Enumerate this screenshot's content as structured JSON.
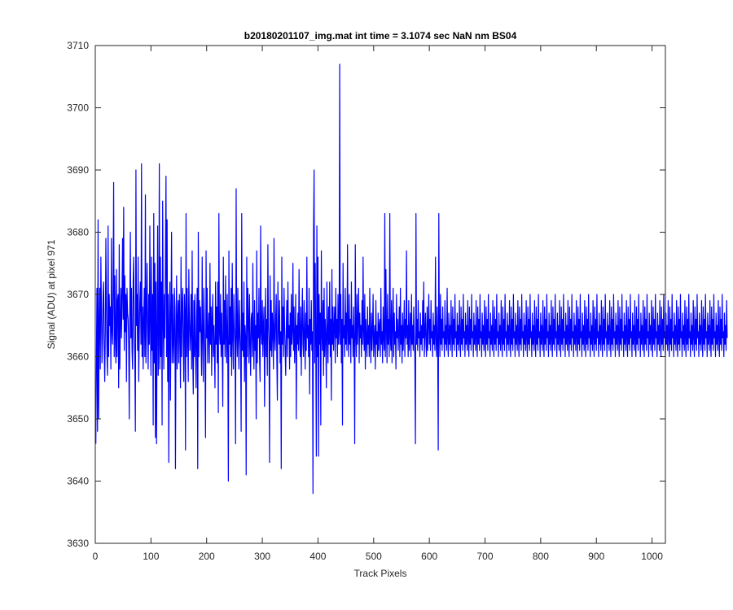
{
  "chart_data": {
    "type": "line",
    "title": "b20180201107_img.mat int time = 3.1074 sec  NaN nm BS04",
    "xlabel": "Track Pixels",
    "ylabel": "Signal (ADU) at pixel 971",
    "xlim": [
      0,
      1024
    ],
    "ylim": [
      3630,
      3710
    ],
    "xticks": [
      0,
      100,
      200,
      300,
      400,
      500,
      600,
      700,
      800,
      900,
      1000
    ],
    "yticks": [
      3630,
      3640,
      3650,
      3660,
      3670,
      3680,
      3690,
      3700,
      3710
    ],
    "xtick_labels": [
      "0",
      "100",
      "200",
      "300",
      "400",
      "500",
      "600",
      "700",
      "800",
      "900",
      "1000"
    ],
    "ytick_labels": [
      "3630",
      "3640",
      "3650",
      "3660",
      "3670",
      "3680",
      "3690",
      "3700",
      "3710"
    ],
    "grid": false,
    "legend": false,
    "series": [
      {
        "color": "#0000ff",
        "x_start": 1,
        "x_step": 1,
        "y": [
          3646,
          3660,
          3671,
          3648,
          3682,
          3650,
          3665,
          3671,
          3658,
          3676,
          3668,
          3659,
          3663,
          3670,
          3672,
          3661,
          3656,
          3664,
          3679,
          3668,
          3660,
          3657,
          3681,
          3660,
          3670,
          3665,
          3668,
          3658,
          3679,
          3664,
          3662,
          3671,
          3688,
          3660,
          3673,
          3663,
          3659,
          3674,
          3660,
          3669,
          3670,
          3655,
          3678,
          3658,
          3665,
          3671,
          3663,
          3670,
          3679,
          3666,
          3684,
          3661,
          3673,
          3664,
          3670,
          3656,
          3671,
          3667,
          3666,
          3662,
          3650,
          3667,
          3680,
          3663,
          3671,
          3661,
          3658,
          3672,
          3676,
          3664,
          3660,
          3648,
          3690,
          3665,
          3670,
          3661,
          3676,
          3656,
          3664,
          3669,
          3672,
          3662,
          3691,
          3660,
          3668,
          3658,
          3666,
          3671,
          3660,
          3686,
          3659,
          3667,
          3675,
          3664,
          3658,
          3670,
          3662,
          3681,
          3665,
          3657,
          3676,
          3661,
          3670,
          3649,
          3683,
          3659,
          3675,
          3647,
          3672,
          3646,
          3664,
          3681,
          3657,
          3662,
          3691,
          3658,
          3676,
          3660,
          3672,
          3649,
          3685,
          3666,
          3658,
          3670,
          3663,
          3676,
          3689,
          3660,
          3682,
          3656,
          3670,
          3643,
          3665,
          3672,
          3653,
          3667,
          3680,
          3659,
          3670,
          3662,
          3659,
          3671,
          3668,
          3642,
          3663,
          3673,
          3658,
          3666,
          3669,
          3659,
          3670,
          3664,
          3655,
          3676,
          3660,
          3668,
          3671,
          3662,
          3656,
          3670,
          3667,
          3645,
          3683,
          3660,
          3671,
          3663,
          3656,
          3674,
          3666,
          3661,
          3664,
          3670,
          3658,
          3677,
          3660,
          3654,
          3669,
          3660,
          3670,
          3661,
          3655,
          3666,
          3671,
          3642,
          3680,
          3660,
          3669,
          3664,
          3668,
          3662,
          3657,
          3676,
          3663,
          3656,
          3671,
          3665,
          3660,
          3647,
          3677,
          3663,
          3671,
          3659,
          3664,
          3667,
          3659,
          3675,
          3662,
          3668,
          3657,
          3666,
          3670,
          3660,
          3665,
          3661,
          3655,
          3672,
          3662,
          3668,
          3659,
          3672,
          3651,
          3683,
          3664,
          3662,
          3670,
          3660,
          3667,
          3661,
          3652,
          3676,
          3662,
          3669,
          3660,
          3673,
          3663,
          3659,
          3670,
          3661,
          3640,
          3677,
          3662,
          3668,
          3660,
          3671,
          3657,
          3675,
          3663,
          3658,
          3670,
          3665,
          3662,
          3646,
          3687,
          3664,
          3660,
          3671,
          3663,
          3658,
          3669,
          3664,
          3661,
          3648,
          3683,
          3661,
          3667,
          3660,
          3672,
          3656,
          3665,
          3663,
          3641,
          3676,
          3660,
          3671,
          3666,
          3659,
          3670,
          3662,
          3657,
          3666,
          3667,
          3660,
          3675,
          3663,
          3658,
          3669,
          3661,
          3665,
          3650,
          3677,
          3659,
          3667,
          3663,
          3671,
          3660,
          3656,
          3681,
          3664,
          3662,
          3669,
          3660,
          3665,
          3668,
          3652,
          3663,
          3671,
          3660,
          3666,
          3657,
          3678,
          3665,
          3662,
          3643,
          3673,
          3661,
          3669,
          3660,
          3667,
          3664,
          3658,
          3679,
          3663,
          3661,
          3666,
          3670,
          3660,
          3653,
          3672,
          3665,
          3662,
          3669,
          3659,
          3664,
          3642,
          3676,
          3662,
          3668,
          3660,
          3671,
          3665,
          3661,
          3657,
          3664,
          3669,
          3660,
          3672,
          3663,
          3665,
          3658,
          3667,
          3660,
          3670,
          3662,
          3664,
          3675,
          3661,
          3668,
          3659,
          3663,
          3670,
          3650,
          3665,
          3662,
          3667,
          3661,
          3674,
          3663,
          3660,
          3668,
          3657,
          3665,
          3671,
          3662,
          3660,
          3669,
          3664,
          3658,
          3667,
          3661,
          3676,
          3663,
          3665,
          3660,
          3671,
          3654,
          3666,
          3662,
          3669,
          3661,
          3664,
          3638,
          3680,
          3690,
          3659,
          3675,
          3662,
          3644,
          3681,
          3660,
          3676,
          3644,
          3670,
          3662,
          3667,
          3649,
          3677,
          3664,
          3661,
          3669,
          3657,
          3671,
          3660,
          3666,
          3663,
          3655,
          3672,
          3664,
          3659,
          3668,
          3662,
          3672,
          3660,
          3666,
          3653,
          3674,
          3662,
          3668,
          3661,
          3665,
          3668,
          3659,
          3671,
          3663,
          3666,
          3660,
          3670,
          3662,
          3664,
          3707,
          3662,
          3670,
          3659,
          3666,
          3649,
          3675,
          3663,
          3665,
          3660,
          3671,
          3662,
          3667,
          3661,
          3678,
          3664,
          3660,
          3670,
          3662,
          3666,
          3659,
          3672,
          3663,
          3665,
          3660,
          3668,
          3662,
          3646,
          3678,
          3664,
          3660,
          3670,
          3662,
          3666,
          3671,
          3659,
          3667,
          3663,
          3665,
          3660,
          3669,
          3662,
          3676,
          3664,
          3661,
          3670,
          3658,
          3666,
          3663,
          3660,
          3668,
          3662,
          3665,
          3660,
          3671,
          3663,
          3659,
          3667,
          3661,
          3664,
          3670,
          3660,
          3663,
          3665,
          3658,
          3669,
          3662,
          3664,
          3660,
          3667,
          3661,
          3665,
          3666,
          3660,
          3671,
          3662,
          3664,
          3659,
          3668,
          3663,
          3661,
          3683,
          3660,
          3674,
          3664,
          3659,
          3670,
          3662,
          3666,
          3660,
          3683,
          3663,
          3661,
          3669,
          3659,
          3665,
          3671,
          3660,
          3667,
          3662,
          3664,
          3658,
          3670,
          3663,
          3666,
          3661,
          3664,
          3668,
          3660,
          3671,
          3662,
          3665,
          3659,
          3667,
          3661,
          3664,
          3669,
          3660,
          3666,
          3663,
          3677,
          3662,
          3665,
          3660,
          3669,
          3661,
          3664,
          3667,
          3660,
          3670,
          3662,
          3665,
          3661,
          3668,
          3663,
          3660,
          3646,
          3683,
          3662,
          3666,
          3661,
          3669,
          3663,
          3664,
          3660,
          3667,
          3662,
          3665,
          3661,
          3669,
          3663,
          3672,
          3660,
          3664,
          3667,
          3662,
          3660,
          3668,
          3661,
          3665,
          3670,
          3662,
          3666,
          3661,
          3669,
          3663,
          3664,
          3660,
          3667,
          3662,
          3665,
          3661,
          3676,
          3663,
          3660,
          3668,
          3662,
          3645,
          3683,
          3664,
          3660,
          3670,
          3662,
          3666,
          3661,
          3668,
          3663,
          3664,
          3660,
          3669,
          3662,
          3665,
          3661,
          3671,
          3663,
          3660,
          3667,
          3662,
          3665,
          3661,
          3669,
          3664,
          3660,
          3668,
          3662,
          3666,
          3661,
          3670,
          3663,
          3664,
          3660,
          3667,
          3662,
          3665,
          3661,
          3669,
          3663,
          3660,
          3668,
          3662,
          3666,
          3661,
          3670,
          3663,
          3664,
          3660,
          3667,
          3662,
          3665,
          3661,
          3669,
          3663,
          3660,
          3668,
          3662,
          3666,
          3661,
          3670,
          3663,
          3664,
          3660,
          3667,
          3662,
          3665,
          3661,
          3669,
          3663,
          3660,
          3668,
          3662,
          3666,
          3661,
          3670,
          3663,
          3664,
          3660,
          3667,
          3662,
          3665,
          3661,
          3669,
          3663,
          3660,
          3668,
          3662,
          3666,
          3661,
          3670,
          3663,
          3664,
          3660,
          3667,
          3662,
          3665,
          3661,
          3669,
          3663,
          3660,
          3668,
          3662,
          3666,
          3661,
          3670,
          3663,
          3664,
          3660,
          3667,
          3662,
          3665,
          3661,
          3669,
          3663,
          3660,
          3668,
          3662,
          3666,
          3661,
          3670,
          3663,
          3664,
          3660,
          3667,
          3662,
          3665,
          3661,
          3669,
          3663,
          3660,
          3668,
          3662,
          3666,
          3661,
          3670,
          3663,
          3664,
          3660,
          3667,
          3662,
          3665,
          3661,
          3669,
          3663,
          3660,
          3668,
          3662,
          3666,
          3661,
          3670,
          3663,
          3664,
          3660,
          3667,
          3662,
          3665,
          3661,
          3669,
          3663,
          3660,
          3668,
          3662,
          3666,
          3661,
          3670,
          3663,
          3664,
          3660,
          3667,
          3662,
          3665,
          3661,
          3669,
          3663,
          3660,
          3668,
          3662,
          3666,
          3661,
          3670,
          3663,
          3664,
          3660,
          3667,
          3662,
          3665,
          3661,
          3669,
          3663,
          3660,
          3668,
          3662,
          3666,
          3661,
          3670,
          3663,
          3664,
          3660,
          3667,
          3662,
          3665,
          3661,
          3669,
          3663,
          3660,
          3668,
          3662,
          3666,
          3661,
          3670,
          3663,
          3664,
          3660,
          3667,
          3662,
          3665,
          3661,
          3669,
          3663,
          3660,
          3668,
          3662,
          3666,
          3661,
          3670,
          3663,
          3664,
          3660,
          3667,
          3662,
          3665,
          3661,
          3669,
          3663,
          3660,
          3668,
          3662,
          3666,
          3661,
          3670,
          3663,
          3664,
          3660,
          3667,
          3662,
          3665,
          3661,
          3669,
          3663,
          3660,
          3668,
          3662,
          3666,
          3661,
          3670,
          3663,
          3664,
          3660,
          3667,
          3662,
          3665,
          3661,
          3669,
          3663,
          3660,
          3668,
          3662,
          3666,
          3661,
          3670,
          3663,
          3664,
          3660,
          3667,
          3662,
          3665,
          3661,
          3669,
          3663,
          3660,
          3668,
          3662,
          3666,
          3661,
          3670,
          3663,
          3664,
          3660,
          3667,
          3662,
          3665,
          3661,
          3669,
          3663,
          3660,
          3668,
          3662,
          3666,
          3661,
          3670,
          3663,
          3664,
          3660,
          3667,
          3662,
          3665,
          3661,
          3669,
          3663,
          3660,
          3668,
          3662,
          3666,
          3661,
          3670,
          3663,
          3664,
          3660,
          3667,
          3662,
          3665,
          3661,
          3669,
          3663,
          3660,
          3668,
          3662,
          3666,
          3661,
          3670,
          3663,
          3664,
          3660,
          3667,
          3662,
          3665,
          3661,
          3669,
          3663,
          3660,
          3668,
          3662,
          3666,
          3661,
          3670,
          3663,
          3664,
          3660,
          3667,
          3662,
          3665,
          3661,
          3669,
          3663,
          3660,
          3668,
          3662,
          3666,
          3661,
          3670,
          3663,
          3664,
          3660,
          3667,
          3662,
          3665,
          3661,
          3669,
          3663,
          3660,
          3668,
          3662,
          3666,
          3661,
          3670,
          3663,
          3664,
          3660,
          3667,
          3662,
          3665,
          3661,
          3669,
          3663,
          3660,
          3668,
          3662,
          3666,
          3661,
          3670,
          3663,
          3664,
          3660,
          3667,
          3662,
          3665,
          3661,
          3669,
          3663,
          3660,
          3668,
          3662,
          3666,
          3661,
          3670,
          3663,
          3664,
          3660,
          3667,
          3662,
          3665,
          3661,
          3669,
          3663,
          3660,
          3668,
          3662,
          3666,
          3661,
          3670,
          3663,
          3664,
          3660,
          3667,
          3662,
          3665,
          3661,
          3669,
          3663,
          3660,
          3668,
          3662,
          3666,
          3661,
          3670,
          3663,
          3664,
          3660,
          3667,
          3662,
          3665,
          3661,
          3669,
          3663,
          3660,
          3668,
          3662,
          3666,
          3661,
          3670,
          3663,
          3664,
          3660,
          3667,
          3662,
          3665,
          3661,
          3669,
          3663,
          3660,
          3668,
          3662,
          3666,
          3661,
          3670,
          3663,
          3664,
          3660,
          3667,
          3662,
          3665,
          3661,
          3669,
          3663,
          3660,
          3668,
          3662,
          3666,
          3661,
          3670,
          3663,
          3664,
          3660,
          3667,
          3662,
          3665,
          3661,
          3669,
          3663,
          3660,
          3668,
          3662,
          3666,
          3661,
          3670,
          3663,
          3664,
          3660,
          3667,
          3662,
          3665,
          3661,
          3669,
          3663,
          3660,
          3668,
          3662,
          3666,
          3661,
          3670,
          3663,
          3664,
          3660,
          3667,
          3662,
          3665,
          3661,
          3669,
          3663
        ]
      }
    ]
  }
}
